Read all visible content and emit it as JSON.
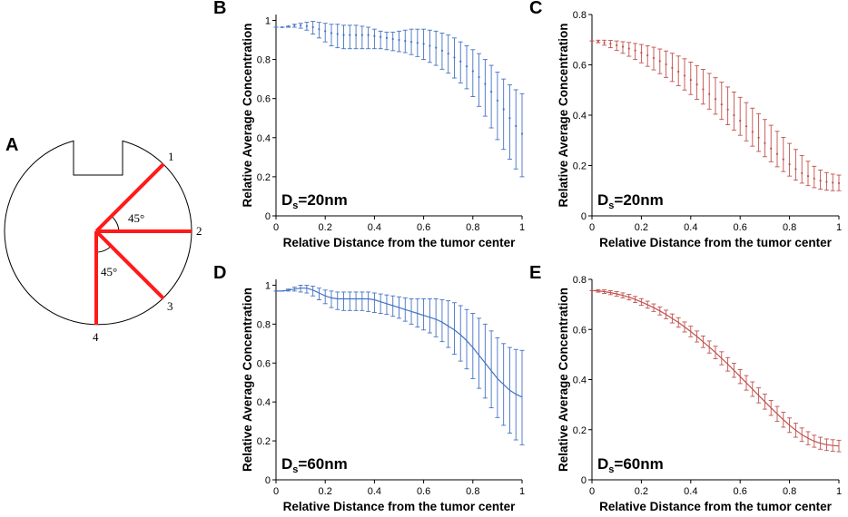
{
  "panelA": {
    "letter": "A",
    "spoke_labels": [
      "1",
      "2",
      "3",
      "4"
    ],
    "angle_labels": [
      "45°",
      "45°"
    ],
    "spoke_color": "#ff1a1a"
  },
  "chart_data": [
    {
      "id": "B",
      "letter": "B",
      "type": "line",
      "style": "dotted",
      "color": "#4472c4",
      "ds_label": "s",
      "ds_prefix": "D",
      "ds_suffix": "=20nm",
      "xlabel": "Relative Distance from the tumor center",
      "ylabel": "Relative Average Concentration",
      "xlim": [
        0,
        1
      ],
      "ylim": [
        0,
        1.03
      ],
      "xticks": [
        0,
        0.2,
        0.4,
        0.6,
        0.8,
        1
      ],
      "xtick_labels": [
        "0",
        "0.2",
        "0.4",
        "0.6",
        "0.8",
        "1"
      ],
      "yticks": [
        0,
        0.2,
        0.4,
        0.6,
        0.8,
        1
      ],
      "ytick_labels": [
        "0",
        "0.2",
        "0.4",
        "0.6",
        "0.8",
        "1"
      ],
      "x": [
        0,
        0.025,
        0.05,
        0.075,
        0.1,
        0.125,
        0.15,
        0.175,
        0.2,
        0.225,
        0.25,
        0.275,
        0.3,
        0.325,
        0.35,
        0.375,
        0.4,
        0.425,
        0.45,
        0.475,
        0.5,
        0.525,
        0.55,
        0.575,
        0.6,
        0.625,
        0.65,
        0.675,
        0.7,
        0.725,
        0.75,
        0.775,
        0.8,
        0.825,
        0.85,
        0.875,
        0.9,
        0.925,
        0.95,
        0.975,
        1
      ],
      "y": [
        0.965,
        0.965,
        0.97,
        0.975,
        0.975,
        0.97,
        0.965,
        0.955,
        0.945,
        0.935,
        0.93,
        0.925,
        0.925,
        0.925,
        0.925,
        0.925,
        0.92,
        0.915,
        0.91,
        0.905,
        0.9,
        0.895,
        0.89,
        0.885,
        0.88,
        0.87,
        0.86,
        0.845,
        0.83,
        0.81,
        0.79,
        0.765,
        0.74,
        0.71,
        0.675,
        0.635,
        0.59,
        0.545,
        0.5,
        0.46,
        0.42
      ],
      "lower": [
        0.965,
        0.965,
        0.965,
        0.965,
        0.96,
        0.95,
        0.93,
        0.91,
        0.89,
        0.87,
        0.86,
        0.855,
        0.855,
        0.855,
        0.855,
        0.855,
        0.855,
        0.855,
        0.85,
        0.845,
        0.84,
        0.835,
        0.825,
        0.815,
        0.8,
        0.785,
        0.77,
        0.75,
        0.73,
        0.705,
        0.68,
        0.65,
        0.61,
        0.56,
        0.51,
        0.45,
        0.39,
        0.34,
        0.29,
        0.24,
        0.2
      ],
      "upper": [
        0.965,
        0.965,
        0.97,
        0.98,
        0.985,
        0.99,
        0.995,
        0.99,
        0.985,
        0.98,
        0.98,
        0.975,
        0.975,
        0.975,
        0.97,
        0.965,
        0.955,
        0.945,
        0.94,
        0.94,
        0.945,
        0.95,
        0.955,
        0.955,
        0.955,
        0.95,
        0.945,
        0.935,
        0.925,
        0.91,
        0.89,
        0.87,
        0.85,
        0.83,
        0.8,
        0.77,
        0.735,
        0.7,
        0.67,
        0.645,
        0.625
      ]
    },
    {
      "id": "C",
      "letter": "C",
      "type": "line",
      "style": "dotted",
      "color": "#c0504d",
      "ds_label": "s",
      "ds_prefix": "D",
      "ds_suffix": "=20nm",
      "xlabel": "Relative Distance from the tumor center",
      "ylabel": "Relative Average Concentration",
      "xlim": [
        0,
        1
      ],
      "ylim": [
        0,
        0.8
      ],
      "xticks": [
        0,
        0.2,
        0.4,
        0.6,
        0.8,
        1
      ],
      "xtick_labels": [
        "0",
        "0.2",
        "0.4",
        "0.6",
        "0.8",
        "1"
      ],
      "yticks": [
        0,
        0.2,
        0.4,
        0.6,
        0.8
      ],
      "ytick_labels": [
        "0",
        "0.2",
        "0.4",
        "0.6",
        "0.8"
      ],
      "x": [
        0,
        0.025,
        0.05,
        0.075,
        0.1,
        0.125,
        0.15,
        0.175,
        0.2,
        0.225,
        0.25,
        0.275,
        0.3,
        0.325,
        0.35,
        0.375,
        0.4,
        0.425,
        0.45,
        0.475,
        0.5,
        0.525,
        0.55,
        0.575,
        0.6,
        0.625,
        0.65,
        0.675,
        0.7,
        0.725,
        0.75,
        0.775,
        0.8,
        0.825,
        0.85,
        0.875,
        0.9,
        0.925,
        0.95,
        0.975,
        1
      ],
      "y": [
        0.695,
        0.693,
        0.688,
        0.684,
        0.678,
        0.672,
        0.665,
        0.657,
        0.648,
        0.638,
        0.627,
        0.615,
        0.602,
        0.588,
        0.573,
        0.557,
        0.54,
        0.522,
        0.503,
        0.484,
        0.464,
        0.443,
        0.422,
        0.4,
        0.378,
        0.356,
        0.334,
        0.311,
        0.289,
        0.267,
        0.246,
        0.225,
        0.205,
        0.186,
        0.17,
        0.158,
        0.148,
        0.14,
        0.135,
        0.132,
        0.13
      ],
      "lower": [
        0.695,
        0.688,
        0.678,
        0.668,
        0.657,
        0.646,
        0.634,
        0.621,
        0.608,
        0.594,
        0.58,
        0.565,
        0.55,
        0.534,
        0.517,
        0.5,
        0.482,
        0.463,
        0.444,
        0.424,
        0.404,
        0.383,
        0.362,
        0.341,
        0.32,
        0.298,
        0.277,
        0.256,
        0.235,
        0.215,
        0.195,
        0.176,
        0.158,
        0.142,
        0.13,
        0.12,
        0.112,
        0.106,
        0.102,
        0.1,
        0.1
      ],
      "upper": [
        0.695,
        0.698,
        0.698,
        0.697,
        0.695,
        0.692,
        0.689,
        0.685,
        0.681,
        0.676,
        0.67,
        0.663,
        0.655,
        0.646,
        0.635,
        0.624,
        0.611,
        0.597,
        0.582,
        0.566,
        0.549,
        0.531,
        0.512,
        0.492,
        0.471,
        0.45,
        0.428,
        0.406,
        0.383,
        0.36,
        0.336,
        0.312,
        0.288,
        0.264,
        0.24,
        0.217,
        0.197,
        0.182,
        0.172,
        0.166,
        0.162
      ]
    },
    {
      "id": "D",
      "letter": "D",
      "type": "line",
      "style": "solid",
      "color": "#4472c4",
      "ds_label": "s",
      "ds_prefix": "D",
      "ds_suffix": "=60nm",
      "xlabel": "Relative Distance from the tumor center",
      "ylabel": "Relative Average Concentration",
      "xlim": [
        0,
        1
      ],
      "ylim": [
        0,
        1.03
      ],
      "xticks": [
        0,
        0.2,
        0.4,
        0.6,
        0.8,
        1
      ],
      "xtick_labels": [
        "0",
        "0.2",
        "0.4",
        "0.6",
        "0.8",
        "1"
      ],
      "yticks": [
        0,
        0.2,
        0.4,
        0.6,
        0.8,
        1
      ],
      "ytick_labels": [
        "0",
        "0.2",
        "0.4",
        "0.6",
        "0.8",
        "1"
      ],
      "x": [
        0,
        0.025,
        0.05,
        0.075,
        0.1,
        0.125,
        0.15,
        0.175,
        0.2,
        0.225,
        0.25,
        0.275,
        0.3,
        0.325,
        0.35,
        0.375,
        0.4,
        0.425,
        0.45,
        0.475,
        0.5,
        0.525,
        0.55,
        0.575,
        0.6,
        0.625,
        0.65,
        0.675,
        0.7,
        0.725,
        0.75,
        0.775,
        0.8,
        0.825,
        0.85,
        0.875,
        0.9,
        0.925,
        0.95,
        0.975,
        1
      ],
      "y": [
        0.97,
        0.97,
        0.975,
        0.98,
        0.985,
        0.985,
        0.975,
        0.96,
        0.945,
        0.935,
        0.93,
        0.93,
        0.93,
        0.93,
        0.93,
        0.93,
        0.925,
        0.915,
        0.905,
        0.895,
        0.885,
        0.875,
        0.865,
        0.855,
        0.845,
        0.835,
        0.825,
        0.81,
        0.79,
        0.77,
        0.745,
        0.715,
        0.68,
        0.64,
        0.6,
        0.56,
        0.52,
        0.49,
        0.46,
        0.44,
        0.425
      ],
      "lower": [
        0.97,
        0.97,
        0.97,
        0.97,
        0.965,
        0.96,
        0.945,
        0.925,
        0.905,
        0.885,
        0.875,
        0.87,
        0.87,
        0.87,
        0.87,
        0.865,
        0.86,
        0.855,
        0.85,
        0.84,
        0.83,
        0.815,
        0.8,
        0.785,
        0.77,
        0.755,
        0.735,
        0.71,
        0.68,
        0.645,
        0.61,
        0.57,
        0.52,
        0.47,
        0.42,
        0.37,
        0.32,
        0.28,
        0.24,
        0.205,
        0.18
      ],
      "upper": [
        0.97,
        0.97,
        0.98,
        0.99,
        1.0,
        1.0,
        0.995,
        0.985,
        0.975,
        0.97,
        0.965,
        0.965,
        0.965,
        0.965,
        0.965,
        0.965,
        0.96,
        0.955,
        0.95,
        0.945,
        0.94,
        0.935,
        0.93,
        0.93,
        0.93,
        0.93,
        0.93,
        0.925,
        0.92,
        0.91,
        0.895,
        0.875,
        0.855,
        0.83,
        0.8,
        0.765,
        0.73,
        0.7,
        0.68,
        0.67,
        0.665
      ]
    },
    {
      "id": "E",
      "letter": "E",
      "type": "line",
      "style": "solid",
      "color": "#c0504d",
      "ds_label": "s",
      "ds_prefix": "D",
      "ds_suffix": "=60nm",
      "xlabel": "Relative Distance from the tumor center",
      "ylabel": "Relative Average Concentration",
      "xlim": [
        0,
        1
      ],
      "ylim": [
        0,
        0.8
      ],
      "xticks": [
        0,
        0.2,
        0.4,
        0.6,
        0.8,
        1
      ],
      "xtick_labels": [
        "0",
        "0.2",
        "0.4",
        "0.6",
        "0.8",
        "1"
      ],
      "yticks": [
        0,
        0.2,
        0.4,
        0.6,
        0.8
      ],
      "ytick_labels": [
        "0",
        "0.2",
        "0.4",
        "0.6",
        "0.8"
      ],
      "x": [
        0,
        0.025,
        0.05,
        0.075,
        0.1,
        0.125,
        0.15,
        0.175,
        0.2,
        0.225,
        0.25,
        0.275,
        0.3,
        0.325,
        0.35,
        0.375,
        0.4,
        0.425,
        0.45,
        0.475,
        0.5,
        0.525,
        0.55,
        0.575,
        0.6,
        0.625,
        0.65,
        0.675,
        0.7,
        0.725,
        0.75,
        0.775,
        0.8,
        0.825,
        0.85,
        0.875,
        0.9,
        0.925,
        0.95,
        0.975,
        1
      ],
      "y": [
        0.755,
        0.754,
        0.751,
        0.747,
        0.742,
        0.736,
        0.729,
        0.72,
        0.71,
        0.699,
        0.687,
        0.674,
        0.66,
        0.644,
        0.628,
        0.61,
        0.592,
        0.572,
        0.551,
        0.53,
        0.508,
        0.485,
        0.461,
        0.437,
        0.412,
        0.387,
        0.362,
        0.337,
        0.312,
        0.287,
        0.263,
        0.24,
        0.218,
        0.198,
        0.18,
        0.166,
        0.154,
        0.146,
        0.14,
        0.137,
        0.135
      ],
      "lower": [
        0.755,
        0.749,
        0.744,
        0.739,
        0.733,
        0.726,
        0.718,
        0.708,
        0.697,
        0.685,
        0.672,
        0.658,
        0.643,
        0.626,
        0.609,
        0.59,
        0.571,
        0.55,
        0.528,
        0.506,
        0.483,
        0.459,
        0.434,
        0.409,
        0.384,
        0.358,
        0.333,
        0.307,
        0.282,
        0.257,
        0.233,
        0.21,
        0.189,
        0.17,
        0.153,
        0.14,
        0.13,
        0.122,
        0.117,
        0.114,
        0.112
      ],
      "upper": [
        0.755,
        0.759,
        0.758,
        0.755,
        0.751,
        0.746,
        0.74,
        0.732,
        0.723,
        0.713,
        0.702,
        0.69,
        0.677,
        0.662,
        0.647,
        0.63,
        0.613,
        0.594,
        0.574,
        0.554,
        0.533,
        0.511,
        0.488,
        0.465,
        0.44,
        0.416,
        0.391,
        0.367,
        0.342,
        0.317,
        0.293,
        0.27,
        0.247,
        0.226,
        0.207,
        0.192,
        0.178,
        0.17,
        0.163,
        0.16,
        0.158
      ]
    }
  ]
}
